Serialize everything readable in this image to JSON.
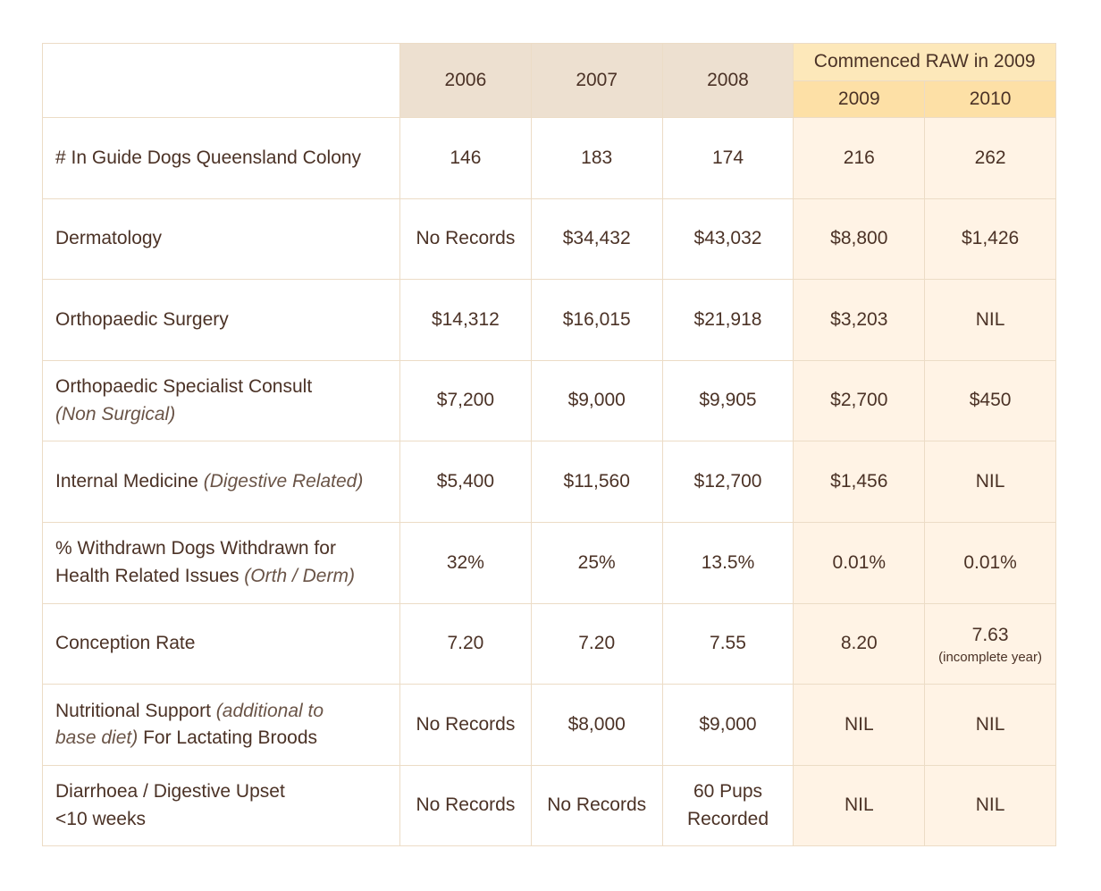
{
  "header": {
    "raw_group_label": "Commenced RAW in 2009",
    "years": [
      "2006",
      "2007",
      "2008",
      "2009",
      "2010"
    ]
  },
  "rows": [
    {
      "label_parts": [
        {
          "text": "# In Guide Dogs Queensland Colony",
          "style": "normal"
        }
      ],
      "values": [
        "146",
        "183",
        "174",
        "216",
        "262"
      ]
    },
    {
      "label_parts": [
        {
          "text": "Dermatology",
          "style": "normal"
        }
      ],
      "values": [
        "No Records",
        "$34,432",
        "$43,032",
        "$8,800",
        "$1,426"
      ]
    },
    {
      "label_parts": [
        {
          "text": "Orthopaedic Surgery",
          "style": "normal"
        }
      ],
      "values": [
        "$14,312",
        "$16,015",
        "$21,918",
        "$3,203",
        "NIL"
      ]
    },
    {
      "label_parts": [
        {
          "text": "Orthopaedic Specialist Consult",
          "style": "normal",
          "break_after": true
        },
        {
          "text": "(Non Surgical)",
          "style": "italic"
        }
      ],
      "values": [
        "$7,200",
        "$9,000",
        "$9,905",
        "$2,700",
        "$450"
      ]
    },
    {
      "label_parts": [
        {
          "text": "Internal Medicine ",
          "style": "normal"
        },
        {
          "text": "(Digestive Related)",
          "style": "italic"
        }
      ],
      "values": [
        "$5,400",
        "$11,560",
        "$12,700",
        "$1,456",
        "NIL"
      ]
    },
    {
      "label_parts": [
        {
          "text": "% Withdrawn Dogs Withdrawn for",
          "style": "normal",
          "break_after": true
        },
        {
          "text": "Health Related Issues ",
          "style": "normal"
        },
        {
          "text": "(Orth / Derm)",
          "style": "italic"
        }
      ],
      "values": [
        "32%",
        "25%",
        "13.5%",
        "0.01%",
        "0.01%"
      ]
    },
    {
      "label_parts": [
        {
          "text": "Conception Rate",
          "style": "normal"
        }
      ],
      "values": [
        "7.20",
        "7.20",
        "7.55",
        "8.20",
        "7.63"
      ],
      "value_notes": [
        "",
        "",
        "",
        "",
        "(incomplete year)"
      ]
    },
    {
      "label_parts": [
        {
          "text": "Nutritional Support ",
          "style": "normal"
        },
        {
          "text": "(additional to",
          "style": "italic",
          "break_after": true
        },
        {
          "text": "base diet)",
          "style": "italic"
        },
        {
          "text": " For Lactating Broods",
          "style": "normal"
        }
      ],
      "values": [
        "No Records",
        "$8,000",
        "$9,000",
        "NIL",
        "NIL"
      ]
    },
    {
      "label_parts": [
        {
          "text": "Diarrhoea / Digestive Upset",
          "style": "normal",
          "break_after": true
        },
        {
          "text": "<10 weeks",
          "style": "normal"
        }
      ],
      "values": [
        "No Records",
        "No Records",
        "60 Pups Recorded",
        "NIL",
        "NIL"
      ]
    }
  ],
  "colors": {
    "border": "#ecdcc6",
    "header_pre_raw": "#ede0d0",
    "header_raw_group": "#fde8ba",
    "header_raw_years": "#fde0a6",
    "raw_cells": "#fff3e5",
    "text": "#4b3226"
  }
}
